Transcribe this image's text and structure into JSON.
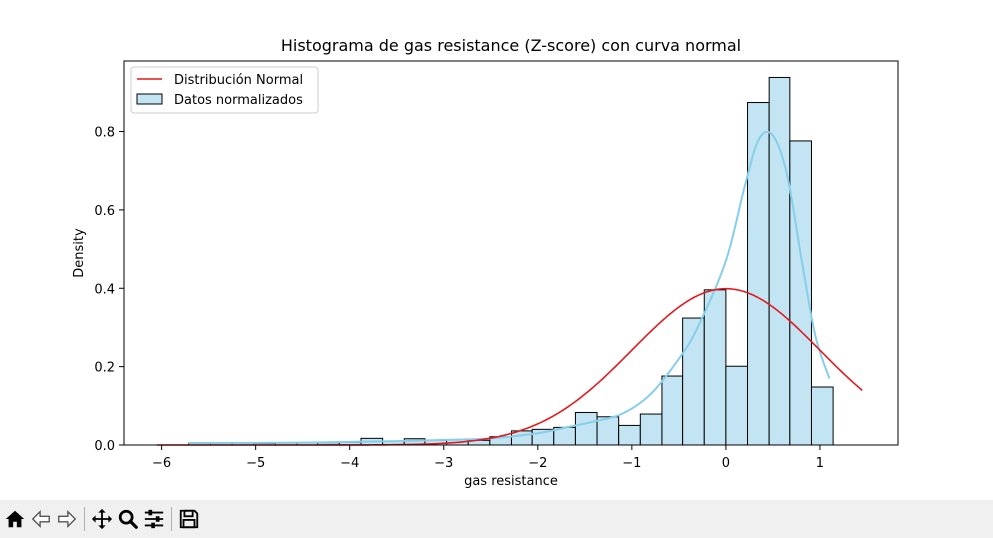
{
  "chart_data": {
    "type": "histogram",
    "title": "Histograma de gas resistance (Z-score) con curva normal",
    "xlabel": "gas resistance",
    "ylabel": "Density",
    "xlim": [
      -6.4,
      1.83
    ],
    "ylim": [
      0,
      0.98
    ],
    "xticks": [
      -6,
      -5,
      -4,
      -3,
      -2,
      -1,
      0,
      1
    ],
    "xtick_labels": [
      "−6",
      "−5",
      "−4",
      "−3",
      "−2",
      "−1",
      "0",
      "1"
    ],
    "yticks": [
      0.0,
      0.2,
      0.4,
      0.6,
      0.8
    ],
    "ytick_labels": [
      "0.0",
      "0.2",
      "0.4",
      "0.6",
      "0.8"
    ],
    "legend_position": "upper-left",
    "series": [
      {
        "name": "Datos normalizados",
        "kind": "bars",
        "fill": "#c2e4f3",
        "edge": "#000000",
        "bin_edges": [
          -5.71,
          -5.48,
          -5.25,
          -5.02,
          -4.79,
          -4.56,
          -4.34,
          -4.11,
          -3.88,
          -3.65,
          -3.42,
          -3.2,
          -2.97,
          -2.74,
          -2.51,
          -2.28,
          -2.06,
          -1.83,
          -1.6,
          -1.37,
          -1.14,
          -0.91,
          -0.68,
          -0.46,
          -0.23,
          0.0,
          0.23,
          0.46,
          0.68,
          0.91,
          1.14
        ],
        "values": [
          0.005,
          0.005,
          0.005,
          0.004,
          0.005,
          0.006,
          0.006,
          0.007,
          0.017,
          0.01,
          0.016,
          0.012,
          0.013,
          0.012,
          0.021,
          0.036,
          0.04,
          0.045,
          0.083,
          0.072,
          0.05,
          0.079,
          0.176,
          0.324,
          0.396,
          0.201,
          0.874,
          0.938,
          0.776,
          0.148
        ]
      },
      {
        "name": "",
        "kind": "kde",
        "color": "#87ceeb",
        "x": [
          -5.71,
          -4.5,
          -3.5,
          -3.0,
          -2.5,
          -2.0,
          -1.7,
          -1.4,
          -1.1,
          -0.8,
          -0.5,
          -0.3,
          0.0,
          0.2,
          0.35,
          0.5,
          0.65,
          0.8,
          0.95,
          1.1
        ],
        "y": [
          0.005,
          0.006,
          0.01,
          0.013,
          0.017,
          0.03,
          0.045,
          0.06,
          0.08,
          0.13,
          0.22,
          0.3,
          0.47,
          0.66,
          0.78,
          0.79,
          0.69,
          0.48,
          0.28,
          0.17
        ]
      },
      {
        "name": "Distribución Normal",
        "kind": "pdf",
        "color": "#e31a1c",
        "mean": 0,
        "std": 1,
        "x_range": [
          -6.05,
          1.45
        ]
      }
    ]
  },
  "toolbar": {
    "buttons": [
      {
        "name": "home-icon",
        "title": "Home"
      },
      {
        "name": "back-icon",
        "title": "Back"
      },
      {
        "name": "forward-icon",
        "title": "Forward"
      },
      {
        "name": "pan-icon",
        "title": "Pan"
      },
      {
        "name": "zoom-icon",
        "title": "Zoom"
      },
      {
        "name": "configure-subplots-icon",
        "title": "Configure subplots"
      },
      {
        "name": "save-icon",
        "title": "Save"
      }
    ]
  }
}
